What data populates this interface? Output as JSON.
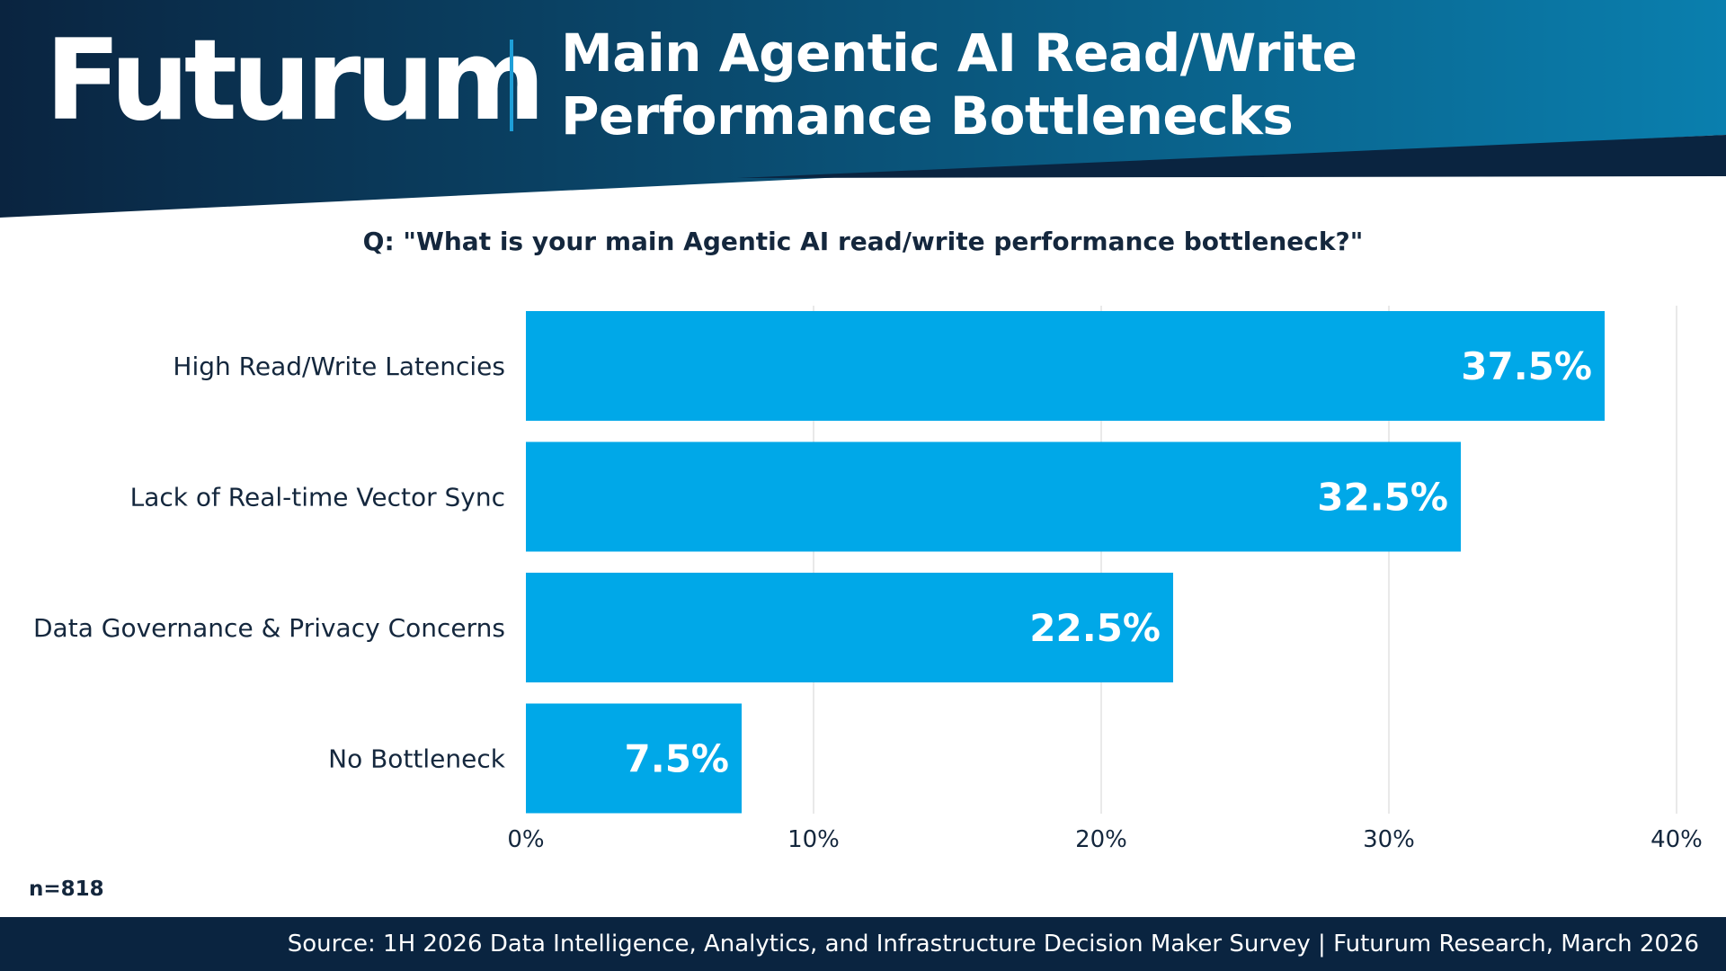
{
  "header": {
    "logo": "Futurum",
    "title_line1": "Main Agentic AI Read/Write",
    "title_line2": "Performance Bottlenecks"
  },
  "question": "Q: \"What is your main Agentic AI read/write performance bottleneck?\"",
  "sample_note": "n=818",
  "source": "Source: 1H 2026 Data Intelligence, Analytics, and Infrastructure Decision Maker Survey | Futurum Research, March 2026",
  "colors": {
    "bar": "#00a8e8",
    "header_dark": "#0a2440",
    "header_light": "#0a7fae",
    "text": "#14273d",
    "grid": "#e2e2e2"
  },
  "chart_data": {
    "type": "bar",
    "orientation": "horizontal",
    "categories": [
      "High Read/Write Latencies",
      "Lack of Real-time Vector Sync",
      "Data Governance & Privacy Concerns",
      "No Bottleneck"
    ],
    "values": [
      37.5,
      32.5,
      22.5,
      7.5
    ],
    "value_labels": [
      "37.5%",
      "32.5%",
      "22.5%",
      "7.5%"
    ],
    "xlim": [
      0,
      40
    ],
    "x_ticks": [
      0,
      10,
      20,
      30,
      40
    ],
    "x_tick_labels": [
      "0%",
      "10%",
      "20%",
      "30%",
      "40%"
    ],
    "grid": true,
    "legend": "none"
  }
}
